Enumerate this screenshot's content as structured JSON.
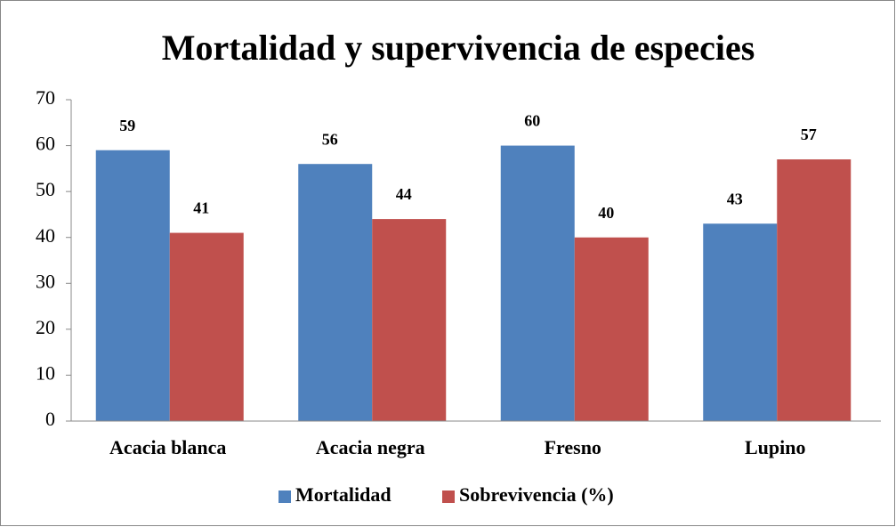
{
  "chart_data": {
    "type": "bar",
    "title": "Mortalidad y supervivencia de especies",
    "categories": [
      "Acacia blanca",
      "Acacia negra",
      "Fresno",
      "Lupino"
    ],
    "series": [
      {
        "name": "Mortalidad",
        "color": "#4f81bd",
        "values": [
          59,
          56,
          60,
          43
        ]
      },
      {
        "name": "Sobrevivencia (%)",
        "color": "#c0504d",
        "values": [
          41,
          44,
          40,
          57
        ]
      }
    ],
    "ylim": [
      0,
      70
    ],
    "yticks": [
      0,
      10,
      20,
      30,
      40,
      50,
      60,
      70
    ],
    "grid": false,
    "legend": "bottom"
  }
}
